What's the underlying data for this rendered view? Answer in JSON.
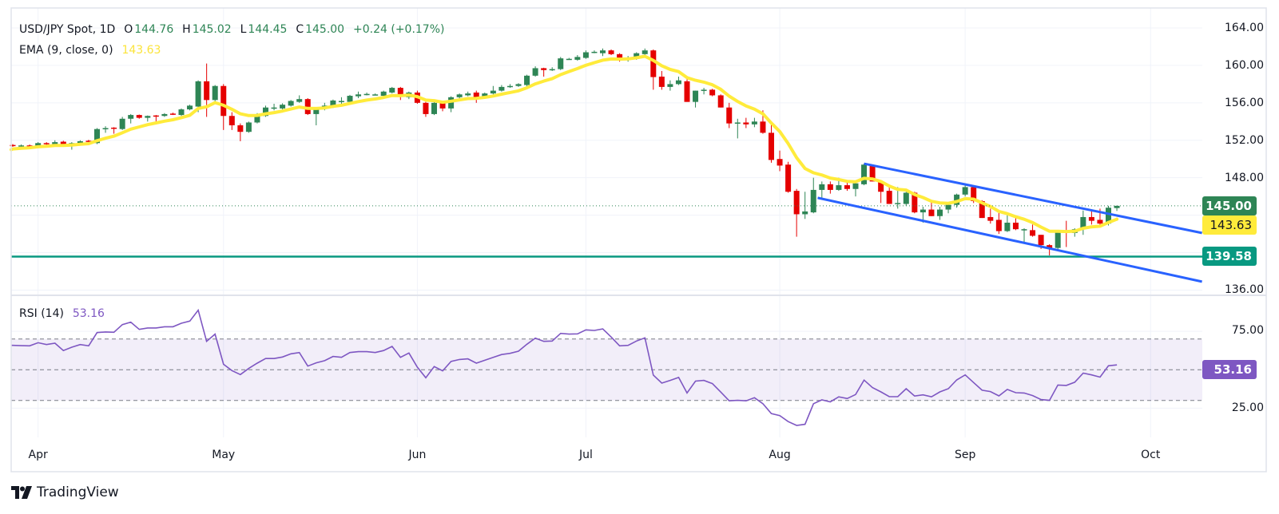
{
  "legend": {
    "symbol": "USD/JPY Spot, 1D",
    "o_label": "O",
    "o": "144.76",
    "h_label": "H",
    "h": "145.02",
    "l_label": "L",
    "l": "144.45",
    "c_label": "C",
    "c": "145.00",
    "change": "+0.24 (+0.17%)",
    "ema_label": "EMA (9, close, 0)",
    "ema_value": "143.63",
    "rsi_label": "RSI (14)",
    "rsi_value": "53.16"
  },
  "price_axis": {
    "ticks": [
      "164.00",
      "160.00",
      "156.00",
      "152.00",
      "148.00",
      "136.00"
    ],
    "last_price": "145.00",
    "ema_price": "143.63",
    "support_price": "139.58"
  },
  "rsi_axis": {
    "ticks": [
      "75.00",
      "25.00"
    ],
    "current": "53.16"
  },
  "time_axis": {
    "months": [
      "Apr",
      "May",
      "Jun",
      "Jul",
      "Aug",
      "Sep",
      "Oct"
    ]
  },
  "branding": {
    "name": "TradingView"
  },
  "colors": {
    "up": "#2e8555",
    "down": "#e50000",
    "ema": "#ffeb3b",
    "channel": "#2962ff",
    "support": "#089981",
    "rsi": "#7e57c2"
  },
  "chart_data": {
    "type": "candlestick",
    "title": "USD/JPY Spot, 1D",
    "price_range": [
      136,
      164
    ],
    "price_gridlines": [
      136,
      140,
      144,
      148,
      152,
      156,
      160,
      164
    ],
    "month_bar_index": [
      3,
      25,
      48,
      68,
      91,
      113,
      135
    ],
    "candles_ohlc": [
      [
        151.5,
        151.6,
        151.3,
        151.4
      ],
      [
        151.4,
        151.55,
        151.3,
        151.45
      ],
      [
        151.45,
        151.55,
        151.3,
        151.4
      ],
      [
        151.35,
        151.8,
        151.25,
        151.7
      ],
      [
        151.7,
        151.8,
        151.5,
        151.6
      ],
      [
        151.6,
        152.0,
        151.5,
        151.8
      ],
      [
        151.85,
        151.95,
        151.3,
        151.4
      ],
      [
        151.4,
        151.8,
        151.0,
        151.7
      ],
      [
        151.7,
        152.0,
        151.6,
        151.9
      ],
      [
        151.95,
        152.05,
        151.8,
        151.9
      ],
      [
        151.7,
        153.3,
        151.6,
        153.2
      ],
      [
        153.2,
        153.5,
        152.8,
        153.3
      ],
      [
        153.35,
        153.4,
        152.7,
        153.3
      ],
      [
        153.2,
        154.5,
        153.1,
        154.3
      ],
      [
        154.3,
        154.8,
        153.8,
        154.7
      ],
      [
        154.7,
        154.75,
        154.3,
        154.4
      ],
      [
        154.4,
        154.65,
        154.0,
        154.6
      ],
      [
        154.65,
        154.7,
        153.9,
        154.6
      ],
      [
        154.6,
        154.9,
        154.5,
        154.8
      ],
      [
        154.85,
        154.95,
        154.7,
        154.8
      ],
      [
        154.7,
        155.4,
        154.6,
        155.3
      ],
      [
        155.3,
        155.8,
        155.2,
        155.7
      ],
      [
        155.6,
        158.4,
        155.0,
        158.3
      ],
      [
        158.3,
        160.2,
        154.5,
        156.3
      ],
      [
        156.3,
        157.9,
        156.1,
        157.8
      ],
      [
        157.8,
        158.0,
        153.1,
        154.6
      ],
      [
        154.6,
        155.0,
        153.1,
        153.6
      ],
      [
        153.6,
        153.8,
        151.9,
        152.9
      ],
      [
        152.9,
        154.0,
        152.8,
        153.9
      ],
      [
        153.9,
        154.9,
        153.8,
        154.7
      ],
      [
        154.6,
        155.7,
        154.5,
        155.5
      ],
      [
        155.5,
        155.9,
        155.2,
        155.5
      ],
      [
        155.4,
        155.95,
        155.3,
        155.8
      ],
      [
        155.7,
        156.3,
        155.6,
        156.2
      ],
      [
        156.1,
        156.8,
        156.0,
        156.4
      ],
      [
        156.4,
        156.5,
        154.7,
        154.8
      ],
      [
        154.8,
        155.5,
        153.6,
        155.4
      ],
      [
        155.35,
        156.0,
        155.2,
        155.7
      ],
      [
        155.55,
        156.35,
        155.45,
        156.25
      ],
      [
        156.2,
        156.6,
        155.9,
        156.2
      ],
      [
        156.1,
        156.85,
        156.0,
        156.75
      ],
      [
        156.7,
        157.2,
        156.5,
        156.9
      ],
      [
        156.95,
        157.1,
        156.8,
        156.95
      ],
      [
        156.9,
        157.0,
        156.8,
        156.9
      ],
      [
        156.75,
        157.3,
        156.7,
        157.2
      ],
      [
        157.1,
        157.7,
        157.0,
        157.6
      ],
      [
        157.6,
        157.7,
        156.3,
        156.7
      ],
      [
        156.6,
        157.2,
        156.4,
        157.1
      ],
      [
        157.1,
        157.3,
        155.9,
        156.0
      ],
      [
        156.0,
        156.1,
        154.5,
        154.8
      ],
      [
        154.8,
        156.1,
        154.7,
        156.0
      ],
      [
        156.0,
        156.1,
        155.1,
        155.4
      ],
      [
        155.4,
        156.7,
        155.0,
        156.6
      ],
      [
        156.6,
        157.0,
        156.4,
        156.9
      ],
      [
        156.8,
        157.2,
        156.7,
        157.0
      ],
      [
        157.1,
        157.3,
        156.0,
        156.6
      ],
      [
        156.6,
        157.1,
        156.5,
        157.0
      ],
      [
        157.0,
        157.8,
        156.9,
        157.3
      ],
      [
        157.3,
        157.9,
        157.2,
        157.7
      ],
      [
        157.7,
        158.0,
        157.6,
        157.8
      ],
      [
        157.8,
        158.1,
        157.7,
        158.0
      ],
      [
        157.9,
        159.0,
        157.7,
        158.9
      ],
      [
        158.9,
        159.9,
        158.8,
        159.7
      ],
      [
        159.7,
        159.75,
        158.8,
        159.5
      ],
      [
        159.6,
        159.8,
        159.4,
        159.6
      ],
      [
        159.6,
        160.9,
        159.5,
        160.75
      ],
      [
        160.7,
        160.8,
        160.6,
        160.7
      ],
      [
        160.6,
        161.1,
        160.5,
        160.9
      ],
      [
        160.8,
        161.6,
        160.7,
        161.4
      ],
      [
        161.45,
        161.6,
        161.3,
        161.45
      ],
      [
        161.3,
        161.8,
        161.0,
        161.6
      ],
      [
        161.6,
        161.7,
        161.1,
        161.2
      ],
      [
        161.2,
        161.3,
        160.4,
        160.6
      ],
      [
        160.8,
        161.0,
        160.4,
        160.8
      ],
      [
        160.7,
        161.4,
        160.6,
        161.3
      ],
      [
        161.2,
        161.8,
        161.1,
        161.6
      ],
      [
        161.6,
        161.7,
        157.4,
        158.75
      ],
      [
        158.8,
        159.4,
        157.4,
        157.7
      ],
      [
        157.7,
        158.4,
        157.3,
        158.0
      ],
      [
        158.0,
        158.8,
        157.9,
        158.4
      ],
      [
        158.3,
        158.5,
        156.1,
        156.1
      ],
      [
        156.1,
        157.3,
        155.5,
        157.3
      ],
      [
        157.4,
        157.6,
        156.9,
        157.4
      ],
      [
        157.4,
        157.5,
        156.7,
        156.8
      ],
      [
        156.8,
        156.9,
        155.5,
        155.5
      ],
      [
        155.5,
        156.0,
        153.3,
        153.8
      ],
      [
        153.9,
        154.3,
        152.2,
        153.9
      ],
      [
        153.9,
        154.4,
        153.3,
        153.7
      ],
      [
        153.7,
        154.4,
        153.4,
        154.0
      ],
      [
        154.0,
        155.2,
        152.7,
        152.8
      ],
      [
        152.8,
        153.9,
        149.6,
        149.9
      ],
      [
        150.0,
        150.9,
        148.7,
        149.3
      ],
      [
        149.4,
        149.7,
        146.4,
        146.5
      ],
      [
        146.6,
        146.8,
        141.7,
        144.1
      ],
      [
        144.1,
        146.5,
        143.6,
        144.4
      ],
      [
        144.3,
        148.0,
        144.2,
        146.7
      ],
      [
        146.7,
        147.6,
        145.8,
        147.3
      ],
      [
        147.3,
        147.6,
        146.3,
        146.7
      ],
      [
        146.7,
        148.0,
        146.6,
        147.2
      ],
      [
        147.2,
        147.6,
        146.6,
        146.8
      ],
      [
        146.8,
        147.6,
        146.0,
        147.4
      ],
      [
        147.3,
        149.5,
        147.2,
        149.4
      ],
      [
        149.3,
        149.4,
        147.6,
        147.6
      ],
      [
        147.6,
        147.6,
        145.3,
        146.5
      ],
      [
        146.6,
        147.0,
        145.2,
        145.2
      ],
      [
        145.3,
        147.0,
        144.7,
        145.3
      ],
      [
        145.2,
        146.5,
        145.0,
        146.4
      ],
      [
        146.4,
        146.5,
        144.2,
        144.3
      ],
      [
        144.3,
        144.9,
        143.2,
        144.6
      ],
      [
        144.6,
        145.4,
        143.9,
        143.9
      ],
      [
        143.9,
        144.9,
        143.5,
        144.6
      ],
      [
        144.6,
        145.4,
        144.2,
        145.1
      ],
      [
        145.1,
        146.3,
        144.8,
        146.2
      ],
      [
        146.2,
        147.3,
        146.0,
        147.0
      ],
      [
        147.0,
        147.1,
        145.3,
        145.5
      ],
      [
        145.5,
        145.6,
        143.7,
        143.7
      ],
      [
        143.8,
        144.7,
        143.1,
        143.4
      ],
      [
        143.5,
        144.4,
        142.0,
        142.3
      ],
      [
        142.3,
        144.0,
        142.2,
        143.2
      ],
      [
        143.2,
        143.9,
        142.4,
        142.5
      ],
      [
        142.5,
        142.6,
        141.0,
        142.5
      ],
      [
        142.4,
        143.0,
        141.7,
        141.8
      ],
      [
        141.9,
        141.9,
        140.4,
        140.8
      ],
      [
        140.8,
        140.9,
        139.7,
        140.5
      ],
      [
        140.5,
        142.4,
        140.3,
        142.3
      ],
      [
        142.3,
        143.4,
        140.6,
        142.1
      ],
      [
        142.1,
        142.6,
        141.7,
        142.5
      ],
      [
        142.5,
        144.5,
        141.9,
        143.8
      ],
      [
        143.8,
        144.5,
        143.0,
        143.4
      ],
      [
        143.5,
        144.7,
        142.9,
        143.1
      ],
      [
        143.1,
        145.0,
        142.9,
        144.8
      ],
      [
        144.76,
        145.02,
        144.45,
        145.0
      ]
    ],
    "ema_period": 9,
    "ema_seed": 151.0,
    "support_level": 139.58,
    "last_close": 145.0,
    "channel": {
      "upper": [
        [
          101,
          149.5
        ],
        [
          141.1,
          142.1
        ]
      ],
      "lower": [
        [
          95.5,
          145.85
        ],
        [
          141.1,
          136.9
        ]
      ]
    },
    "rsi": {
      "period": 14,
      "range": [
        0,
        100
      ],
      "levels": [
        30,
        50,
        70
      ],
      "gridlines": [
        25,
        75
      ],
      "values": [
        65.9,
        65.7,
        65.6,
        67.6,
        66.4,
        67.3,
        62.5,
        64.7,
        66.4,
        65.6,
        74.2,
        74.6,
        74.4,
        79.4,
        81.0,
        76.3,
        77.2,
        77.2,
        78.0,
        78.0,
        80.3,
        81.7,
        88.8,
        68.5,
        73.2,
        53.6,
        49.5,
        46.9,
        50.9,
        54.3,
        57.3,
        57.3,
        58.3,
        60.4,
        61.2,
        52.4,
        54.5,
        55.9,
        58.7,
        58.1,
        61.2,
        61.8,
        61.8,
        61.2,
        62.5,
        65.2,
        58.1,
        60.9,
        51.7,
        44.8,
        52.1,
        49.3,
        55.4,
        56.7,
        57.1,
        54.3,
        56.2,
        58.1,
        59.9,
        60.7,
        62.1,
        66.6,
        70.6,
        68.5,
        68.7,
        73.7,
        73.2,
        73.4,
        76.0,
        75.6,
        76.6,
        71.3,
        65.6,
        65.9,
        68.7,
        70.8,
        46.5,
        41.3,
        43.1,
        45.0,
        34.9,
        42.6,
        43.1,
        41.0,
        35.5,
        29.8,
        30.1,
        29.8,
        31.8,
        27.9,
        21.5,
        20.2,
        16.3,
        13.8,
        14.5,
        27.9,
        30.4,
        29.1,
        32.4,
        31.3,
        33.9,
        43.3,
        38.4,
        35.6,
        32.5,
        32.5,
        37.7,
        32.9,
        33.7,
        32.4,
        35.6,
        37.7,
        43.4,
        46.7,
        41.7,
        36.7,
        35.8,
        33.0,
        37.2,
        35.1,
        34.9,
        33.2,
        30.6,
        30.1,
        40.1,
        39.8,
        41.9,
        47.8,
        46.7,
        45.2,
        52.6,
        53.16
      ]
    }
  }
}
